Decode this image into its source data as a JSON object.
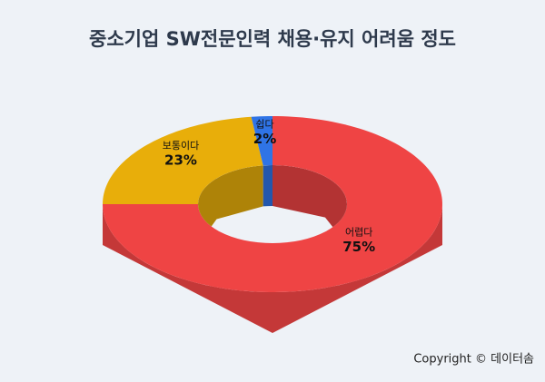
{
  "chart_data": {
    "type": "pie",
    "donut": true,
    "title": "중소기업 SW전문인력 채용·유지 어려움 정도",
    "categories": [
      "어렵다",
      "보통이다",
      "쉽다"
    ],
    "values": [
      75,
      23,
      2
    ],
    "value_labels": [
      "75%",
      "23%",
      "2%"
    ],
    "colors": [
      "#ef4444",
      "#e8ae0a",
      "#2f74e6"
    ]
  },
  "footer": "Copyright © 데이터솜"
}
